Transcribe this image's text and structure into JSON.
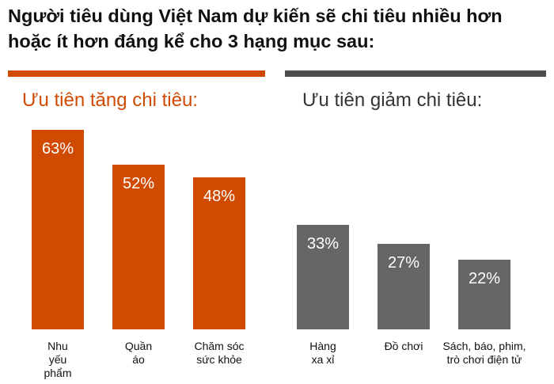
{
  "title_lines": [
    "Người tiêu dùng Việt Nam dự kiến sẽ chi tiêu nhiều hơn",
    "hoặc ít hơn đáng kể cho 3 hạng mục sau:"
  ],
  "colors": {
    "increase": "#D04A02",
    "decrease": "#666666",
    "rule_dark": "#4D4D4D"
  },
  "chart_data": [
    {
      "type": "bar",
      "title": "Ưu tiên tăng chi tiêu:",
      "categories": [
        [
          "Nhu",
          "yếu",
          "phẩm"
        ],
        [
          "Quần",
          "áo"
        ],
        [
          "Chăm sóc",
          "sức khỏe"
        ]
      ],
      "values": [
        63,
        52,
        48
      ],
      "value_labels": [
        "63%",
        "52%",
        "48%"
      ],
      "ylim": [
        0,
        70
      ],
      "grid": false,
      "legend": false
    },
    {
      "type": "bar",
      "title": "Ưu tiên giảm chi tiêu:",
      "categories": [
        [
          "Hàng",
          "xa xỉ"
        ],
        [
          "Đồ chơi"
        ],
        [
          "Sách, báo, phim,",
          "trò chơi điện tử"
        ]
      ],
      "values": [
        33,
        27,
        22
      ],
      "value_labels": [
        "33%",
        "27%",
        "22%"
      ],
      "ylim": [
        0,
        70
      ],
      "grid": false,
      "legend": false
    }
  ]
}
